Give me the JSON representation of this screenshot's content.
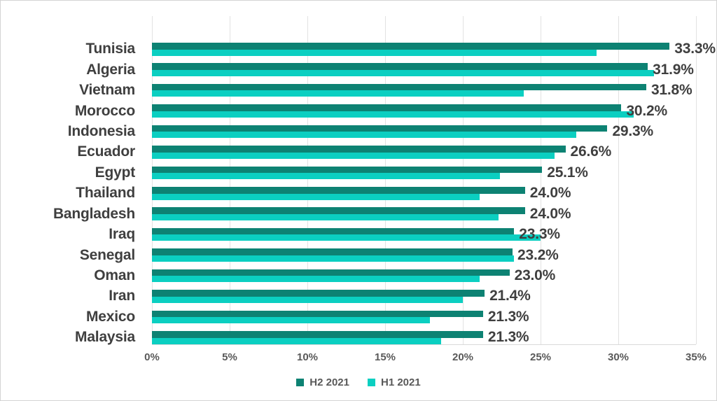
{
  "chart_data": {
    "type": "bar",
    "orientation": "horizontal",
    "title": "",
    "categories": [
      "Tunisia",
      "Algeria",
      "Vietnam",
      "Morocco",
      "Indonesia",
      "Ecuador",
      "Egypt",
      "Thailand",
      "Bangladesh",
      "Iraq",
      "Senegal",
      "Oman",
      "Iran",
      "Mexico",
      "Malaysia"
    ],
    "series": [
      {
        "name": "H2 2021",
        "color": "#0d8273",
        "values": [
          33.3,
          31.9,
          31.8,
          30.2,
          29.3,
          26.6,
          25.1,
          24.0,
          24.0,
          23.3,
          23.2,
          23.0,
          21.4,
          21.3,
          21.3
        ],
        "data_labels": [
          "33.3%",
          "31.9%",
          "31.8%",
          "30.2%",
          "29.3%",
          "26.6%",
          "25.1%",
          "24.0%",
          "24.0%",
          "23.3%",
          "23.2%",
          "23.0%",
          "21.4%",
          "21.3%",
          "21.3%"
        ]
      },
      {
        "name": "H1 2021",
        "color": "#0bcfc1",
        "values": [
          28.6,
          32.3,
          23.9,
          31.0,
          27.3,
          25.9,
          22.4,
          21.1,
          22.3,
          25.0,
          23.3,
          21.1,
          20.0,
          17.9,
          18.6
        ],
        "data_labels": null
      }
    ],
    "x_axis": {
      "min": 0,
      "max": 35,
      "step": 5,
      "tick_labels": [
        "0%",
        "5%",
        "10%",
        "15%",
        "20%",
        "25%",
        "30%",
        "35%"
      ]
    },
    "legend": {
      "position": "bottom",
      "entries": [
        "H2 2021",
        "H1 2021"
      ]
    },
    "grid": true
  },
  "colors": {
    "h2_series": "#0d8273",
    "h1_series": "#0bcfc1",
    "gridline": "#e2e2e2",
    "label_text": "#3f3f3f",
    "axis_text": "#595959",
    "chart_border": "#d3d3d3",
    "background": "#ffffff"
  }
}
